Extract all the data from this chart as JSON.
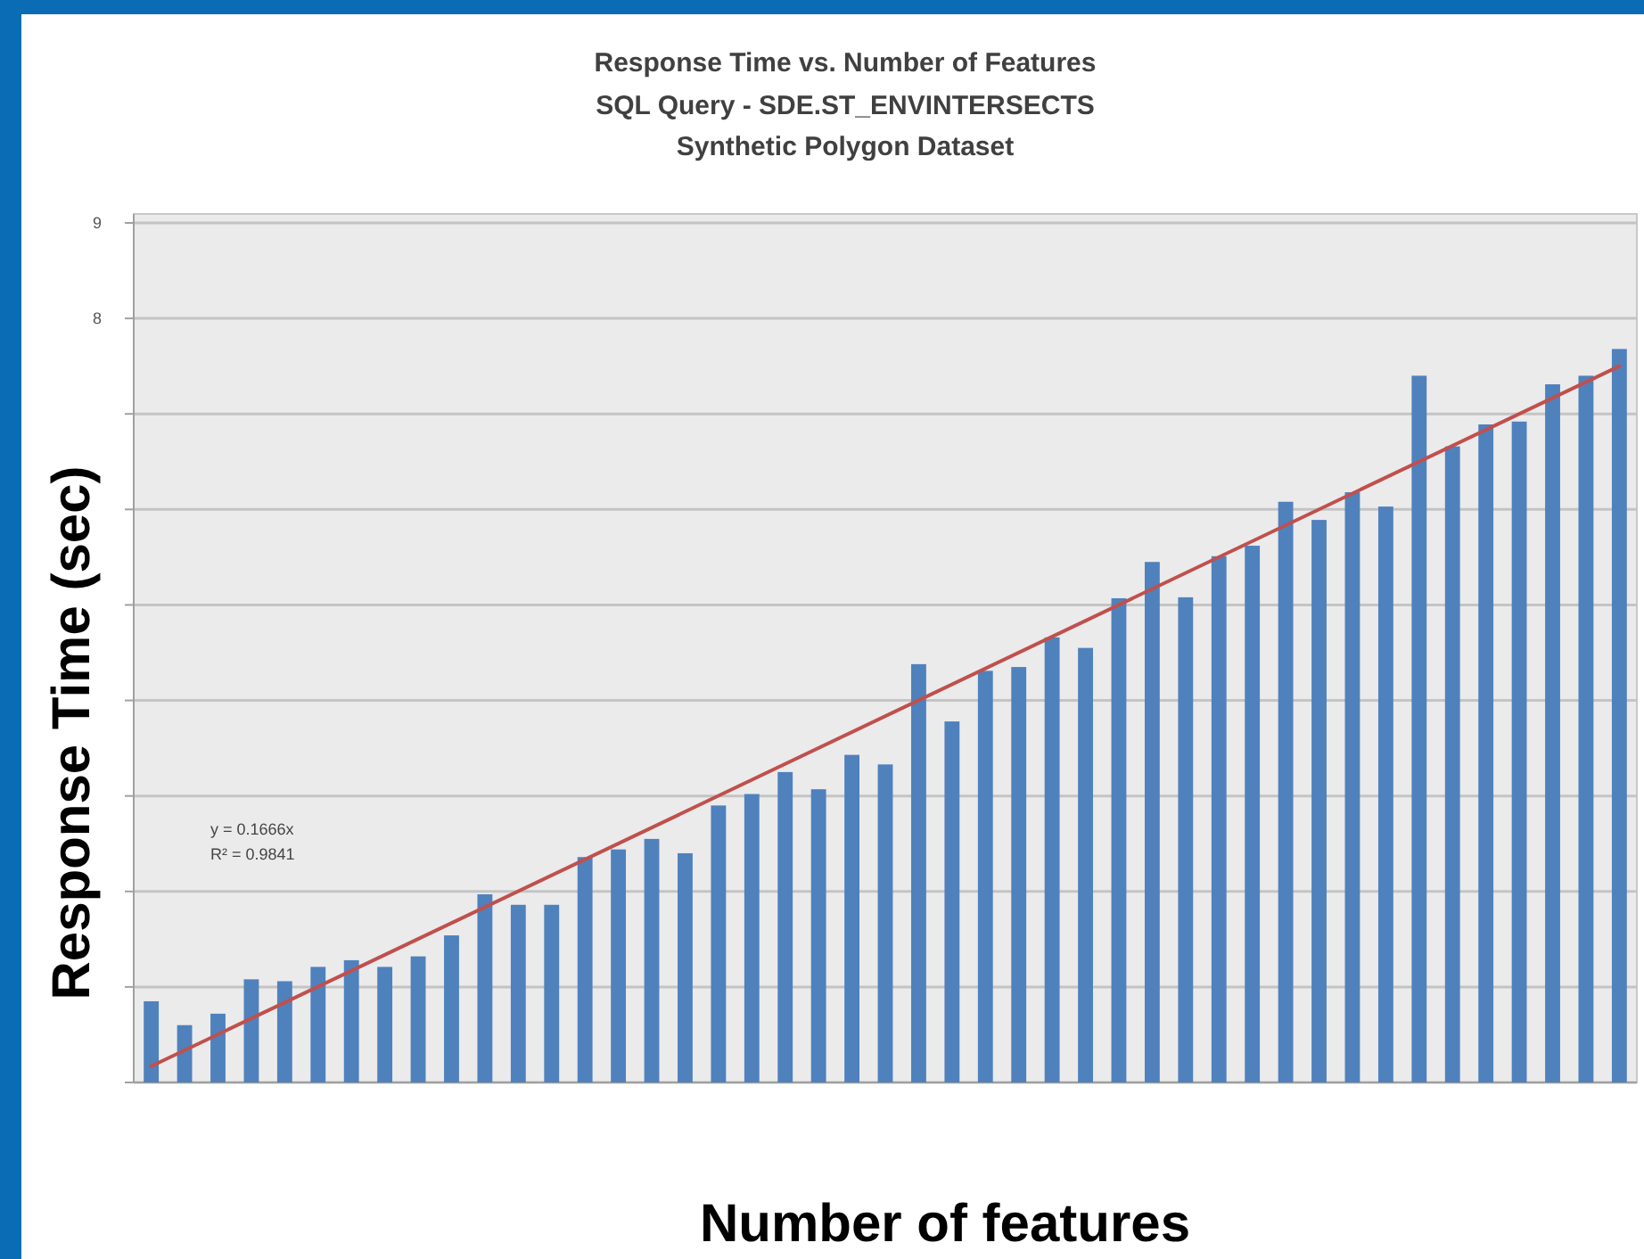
{
  "chart_data": {
    "type": "bar",
    "title": "Response Time vs. Number of Features",
    "subtitle": "SQL Query - SDE.ST_ENVINTERSECTS\nSynthetic Polygon Dataset",
    "xlabel": "Number of features",
    "ylabel": "Response Time (sec)",
    "categories": [
      null,
      null,
      null,
      null,
      null,
      null,
      null,
      null,
      null,
      null,
      null,
      null,
      null,
      null,
      null,
      null,
      null,
      null,
      null,
      null,
      null,
      null,
      null,
      null,
      null,
      null,
      null,
      null,
      null,
      null,
      null,
      null,
      null,
      null,
      null,
      null,
      null,
      null,
      null,
      null,
      null,
      null,
      null,
      null,
      null
    ],
    "series": [
      {
        "color": "#4f81bd",
        "values": [
          0.85,
          0.6,
          0.72,
          1.08,
          1.06,
          1.21,
          1.28,
          1.21,
          1.32,
          1.54,
          1.97,
          1.86,
          1.86,
          2.36,
          2.44,
          2.55,
          2.4,
          2.9,
          3.02,
          3.25,
          3.07,
          3.43,
          3.33,
          4.38,
          3.78,
          4.31,
          4.35,
          4.66,
          4.55,
          5.07,
          5.45,
          5.08,
          5.51,
          5.62,
          6.08,
          5.89,
          6.18,
          6.03,
          7.4,
          6.66,
          6.89,
          6.92,
          7.31,
          7.4,
          7.68
        ]
      },
      {
        "type": "line",
        "color": "#c0504d",
        "values": [
          0.17,
          null,
          null,
          null,
          null,
          null,
          null,
          null,
          null,
          null,
          null,
          null,
          null,
          null,
          null,
          null,
          null,
          null,
          null,
          null,
          null,
          null,
          null,
          null,
          null,
          null,
          null,
          null,
          null,
          null,
          null,
          null,
          null,
          null,
          null,
          null,
          null,
          null,
          null,
          null,
          null,
          null,
          null,
          null,
          7.5
        ]
      }
    ],
    "ylim": [
      0,
      9
    ],
    "yticks": [
      {
        "value": 0,
        "label": null
      },
      {
        "value": 1,
        "label": null
      },
      {
        "value": 2,
        "label": null
      },
      {
        "value": 3,
        "label": null
      },
      {
        "value": 4,
        "label": null
      },
      {
        "value": 5,
        "label": null
      },
      {
        "value": 6,
        "label": null
      },
      {
        "value": 7,
        "label": null
      },
      8,
      9
    ],
    "grid": "y",
    "annotations": [
      "y = 0.1666x",
      "R² = 0.9841"
    ]
  }
}
